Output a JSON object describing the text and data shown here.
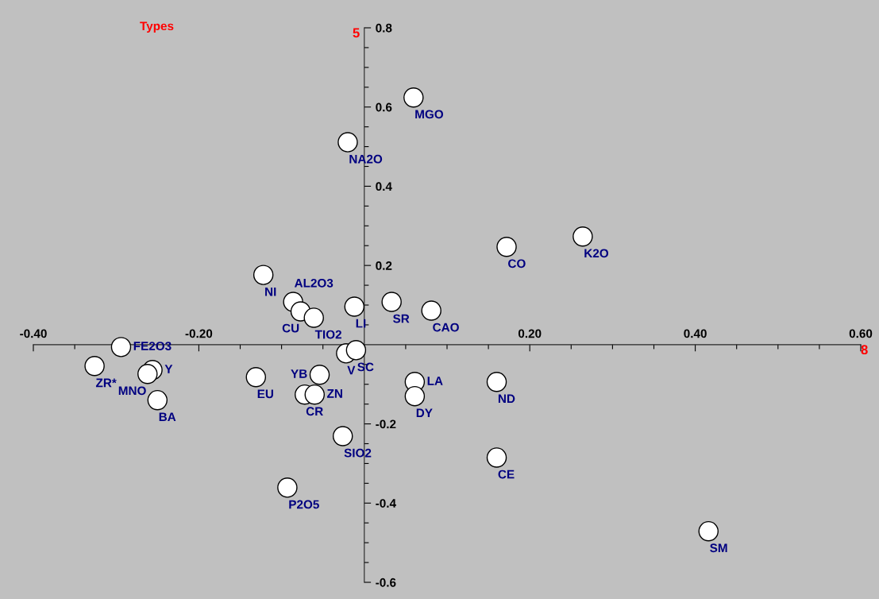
{
  "chart_data": {
    "type": "scatter",
    "title": "Types",
    "xlabel": "8",
    "ylabel": "5",
    "series": [
      {
        "color": "#ffffff",
        "x": [
          0.0595,
          -0.02,
          0.172,
          0.264,
          -0.122,
          -0.086,
          -0.077,
          -0.061,
          -0.012,
          0.033,
          0.081,
          -0.294,
          -0.326,
          -0.256,
          -0.262,
          -0.25,
          -0.131,
          -0.022,
          -0.01,
          -0.054,
          -0.072,
          -0.06,
          -0.026,
          -0.093,
          0.061,
          0.061,
          0.16,
          0.16,
          0.416
        ],
        "values": [
          0.624,
          0.511,
          0.247,
          0.273,
          0.176,
          0.108,
          0.084,
          0.068,
          0.096,
          0.108,
          0.086,
          -0.006,
          -0.054,
          -0.064,
          -0.074,
          -0.14,
          -0.082,
          -0.022,
          -0.014,
          -0.076,
          -0.126,
          -0.126,
          -0.231,
          -0.361,
          -0.094,
          -0.13,
          -0.094,
          -0.285,
          -0.471
        ]
      }
    ],
    "annotations": [
      {
        "text": "MGO",
        "x": 0.0595,
        "y": 0.624
      },
      {
        "text": "NA2O",
        "x": -0.02,
        "y": 0.511
      },
      {
        "text": "CO",
        "x": 0.172,
        "y": 0.247
      },
      {
        "text": "K2O",
        "x": 0.264,
        "y": 0.273
      },
      {
        "text": "NI",
        "x": -0.122,
        "y": 0.176
      },
      {
        "text": "AL2O3",
        "x": -0.086,
        "y": 0.108
      },
      {
        "text": "CU",
        "x": -0.077,
        "y": 0.084
      },
      {
        "text": "TIO2",
        "x": -0.061,
        "y": 0.068
      },
      {
        "text": "LI",
        "x": -0.012,
        "y": 0.096
      },
      {
        "text": "SR",
        "x": 0.033,
        "y": 0.108
      },
      {
        "text": "CAO",
        "x": 0.081,
        "y": 0.086
      },
      {
        "text": "FE2O3",
        "x": -0.294,
        "y": -0.006
      },
      {
        "text": "ZR*",
        "x": -0.326,
        "y": -0.054
      },
      {
        "text": "Y",
        "x": -0.256,
        "y": -0.064
      },
      {
        "text": "MNO",
        "x": -0.262,
        "y": -0.074
      },
      {
        "text": "BA",
        "x": -0.25,
        "y": -0.14
      },
      {
        "text": "EU",
        "x": -0.131,
        "y": -0.082
      },
      {
        "text": "V",
        "x": -0.022,
        "y": -0.022
      },
      {
        "text": "SC",
        "x": -0.01,
        "y": -0.014
      },
      {
        "text": "YB",
        "x": -0.054,
        "y": -0.076
      },
      {
        "text": "CR",
        "x": -0.072,
        "y": -0.126
      },
      {
        "text": "ZN",
        "x": -0.06,
        "y": -0.126
      },
      {
        "text": "SIO2",
        "x": -0.026,
        "y": -0.231
      },
      {
        "text": "P2O5",
        "x": -0.093,
        "y": -0.361
      },
      {
        "text": "LA",
        "x": 0.061,
        "y": -0.094
      },
      {
        "text": "DY",
        "x": 0.061,
        "y": -0.13
      },
      {
        "text": "ND",
        "x": 0.16,
        "y": -0.094
      },
      {
        "text": "CE",
        "x": 0.16,
        "y": -0.285
      },
      {
        "text": "SM",
        "x": 0.416,
        "y": -0.471
      }
    ],
    "xlim": [
      -0.4,
      0.6
    ],
    "ylim": [
      -0.6,
      0.8
    ],
    "xticks": [
      {
        "value": -0.4,
        "label": "-0.40"
      },
      {
        "value": -0.35,
        "label": null
      },
      {
        "value": -0.3,
        "label": null
      },
      {
        "value": -0.25,
        "label": null
      },
      {
        "value": -0.2,
        "label": "-0.20"
      },
      {
        "value": -0.15,
        "label": null
      },
      {
        "value": -0.1,
        "label": null
      },
      {
        "value": -0.05,
        "label": null
      },
      {
        "value": 0.05,
        "label": null
      },
      {
        "value": 0.1,
        "label": null
      },
      {
        "value": 0.15,
        "label": null
      },
      {
        "value": 0.2,
        "label": "0.20"
      },
      {
        "value": 0.25,
        "label": null
      },
      {
        "value": 0.3,
        "label": null
      },
      {
        "value": 0.35,
        "label": null
      },
      {
        "value": 0.4,
        "label": "0.40"
      },
      {
        "value": 0.45,
        "label": null
      },
      {
        "value": 0.5,
        "label": null
      },
      {
        "value": 0.55,
        "label": null
      },
      {
        "value": 0.6,
        "label": "0.60"
      }
    ],
    "yticks": [
      {
        "value": -0.6,
        "label": "-0.6"
      },
      {
        "value": -0.55,
        "label": null
      },
      {
        "value": -0.5,
        "label": null
      },
      {
        "value": -0.45,
        "label": null
      },
      {
        "value": -0.4,
        "label": "-0.4"
      },
      {
        "value": -0.35,
        "label": null
      },
      {
        "value": -0.3,
        "label": null
      },
      {
        "value": -0.25,
        "label": null
      },
      {
        "value": -0.2,
        "label": "-0.2"
      },
      {
        "value": -0.15,
        "label": null
      },
      {
        "value": -0.1,
        "label": null
      },
      {
        "value": -0.05,
        "label": null
      },
      {
        "value": 0.05,
        "label": null
      },
      {
        "value": 0.1,
        "label": null
      },
      {
        "value": 0.15,
        "label": null
      },
      {
        "value": 0.2,
        "label": "0.2"
      },
      {
        "value": 0.25,
        "label": null
      },
      {
        "value": 0.3,
        "label": null
      },
      {
        "value": 0.35,
        "label": null
      },
      {
        "value": 0.4,
        "label": "0.4"
      },
      {
        "value": 0.45,
        "label": null
      },
      {
        "value": 0.5,
        "label": null
      },
      {
        "value": 0.55,
        "label": null
      },
      {
        "value": 0.6,
        "label": "0.6"
      },
      {
        "value": 0.65,
        "label": null
      },
      {
        "value": 0.7,
        "label": null
      },
      {
        "value": 0.75,
        "label": null
      },
      {
        "value": 0.8,
        "label": "0.8"
      }
    ],
    "marker": "circle",
    "grid": false,
    "legend": false
  }
}
